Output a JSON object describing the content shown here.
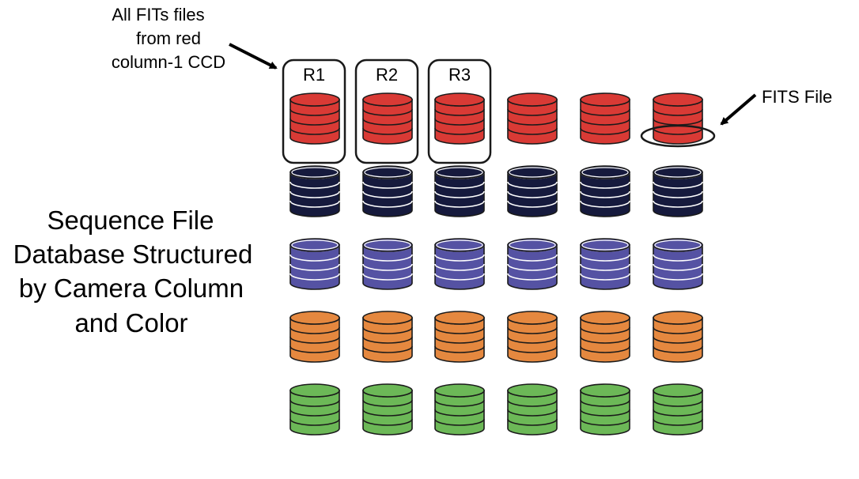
{
  "annotations": {
    "group_note": [
      "All FITs files",
      "from red",
      "column-1 CCD"
    ],
    "file_note": "FITS File"
  },
  "main_label": [
    "Sequence File",
    "Database Structured",
    "by Camera Column",
    "and Color"
  ],
  "group_labels": [
    "R1",
    "R2",
    "R3"
  ],
  "grid": {
    "columns": 6,
    "rows": [
      {
        "fill": "#d93a35",
        "stroke": "#1a1a1a"
      },
      {
        "fill": "#161a3d",
        "stroke": "#ffffff"
      },
      {
        "fill": "#5552a3",
        "stroke": "#ffffff"
      },
      {
        "fill": "#e5883f",
        "stroke": "#1a1a1a"
      },
      {
        "fill": "#6cb857",
        "stroke": "#1a1a1a"
      }
    ]
  },
  "colors": {
    "outline": "#1a1a1a",
    "arrow": "#000000"
  }
}
